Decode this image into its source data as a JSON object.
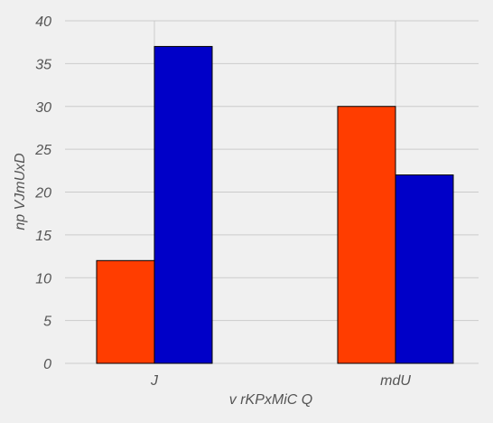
{
  "chart_data": {
    "type": "bar",
    "categories": [
      "J",
      "mdU"
    ],
    "series": [
      {
        "values": [
          12,
          30
        ],
        "color": "#ff3d00"
      },
      {
        "values": [
          37,
          22
        ],
        "color": "#0000c8"
      }
    ],
    "xlabel": "v rKPxMiC Q",
    "ylabel": "np VJmUxD",
    "ylim": [
      0,
      40
    ],
    "yticks": [
      0,
      5,
      10,
      15,
      20,
      25,
      30,
      35,
      40
    ],
    "grid": true,
    "legend": "none"
  },
  "colors": {
    "background": "#f0f0f0",
    "grid": "#cbcbcb",
    "text": "#555555"
  }
}
